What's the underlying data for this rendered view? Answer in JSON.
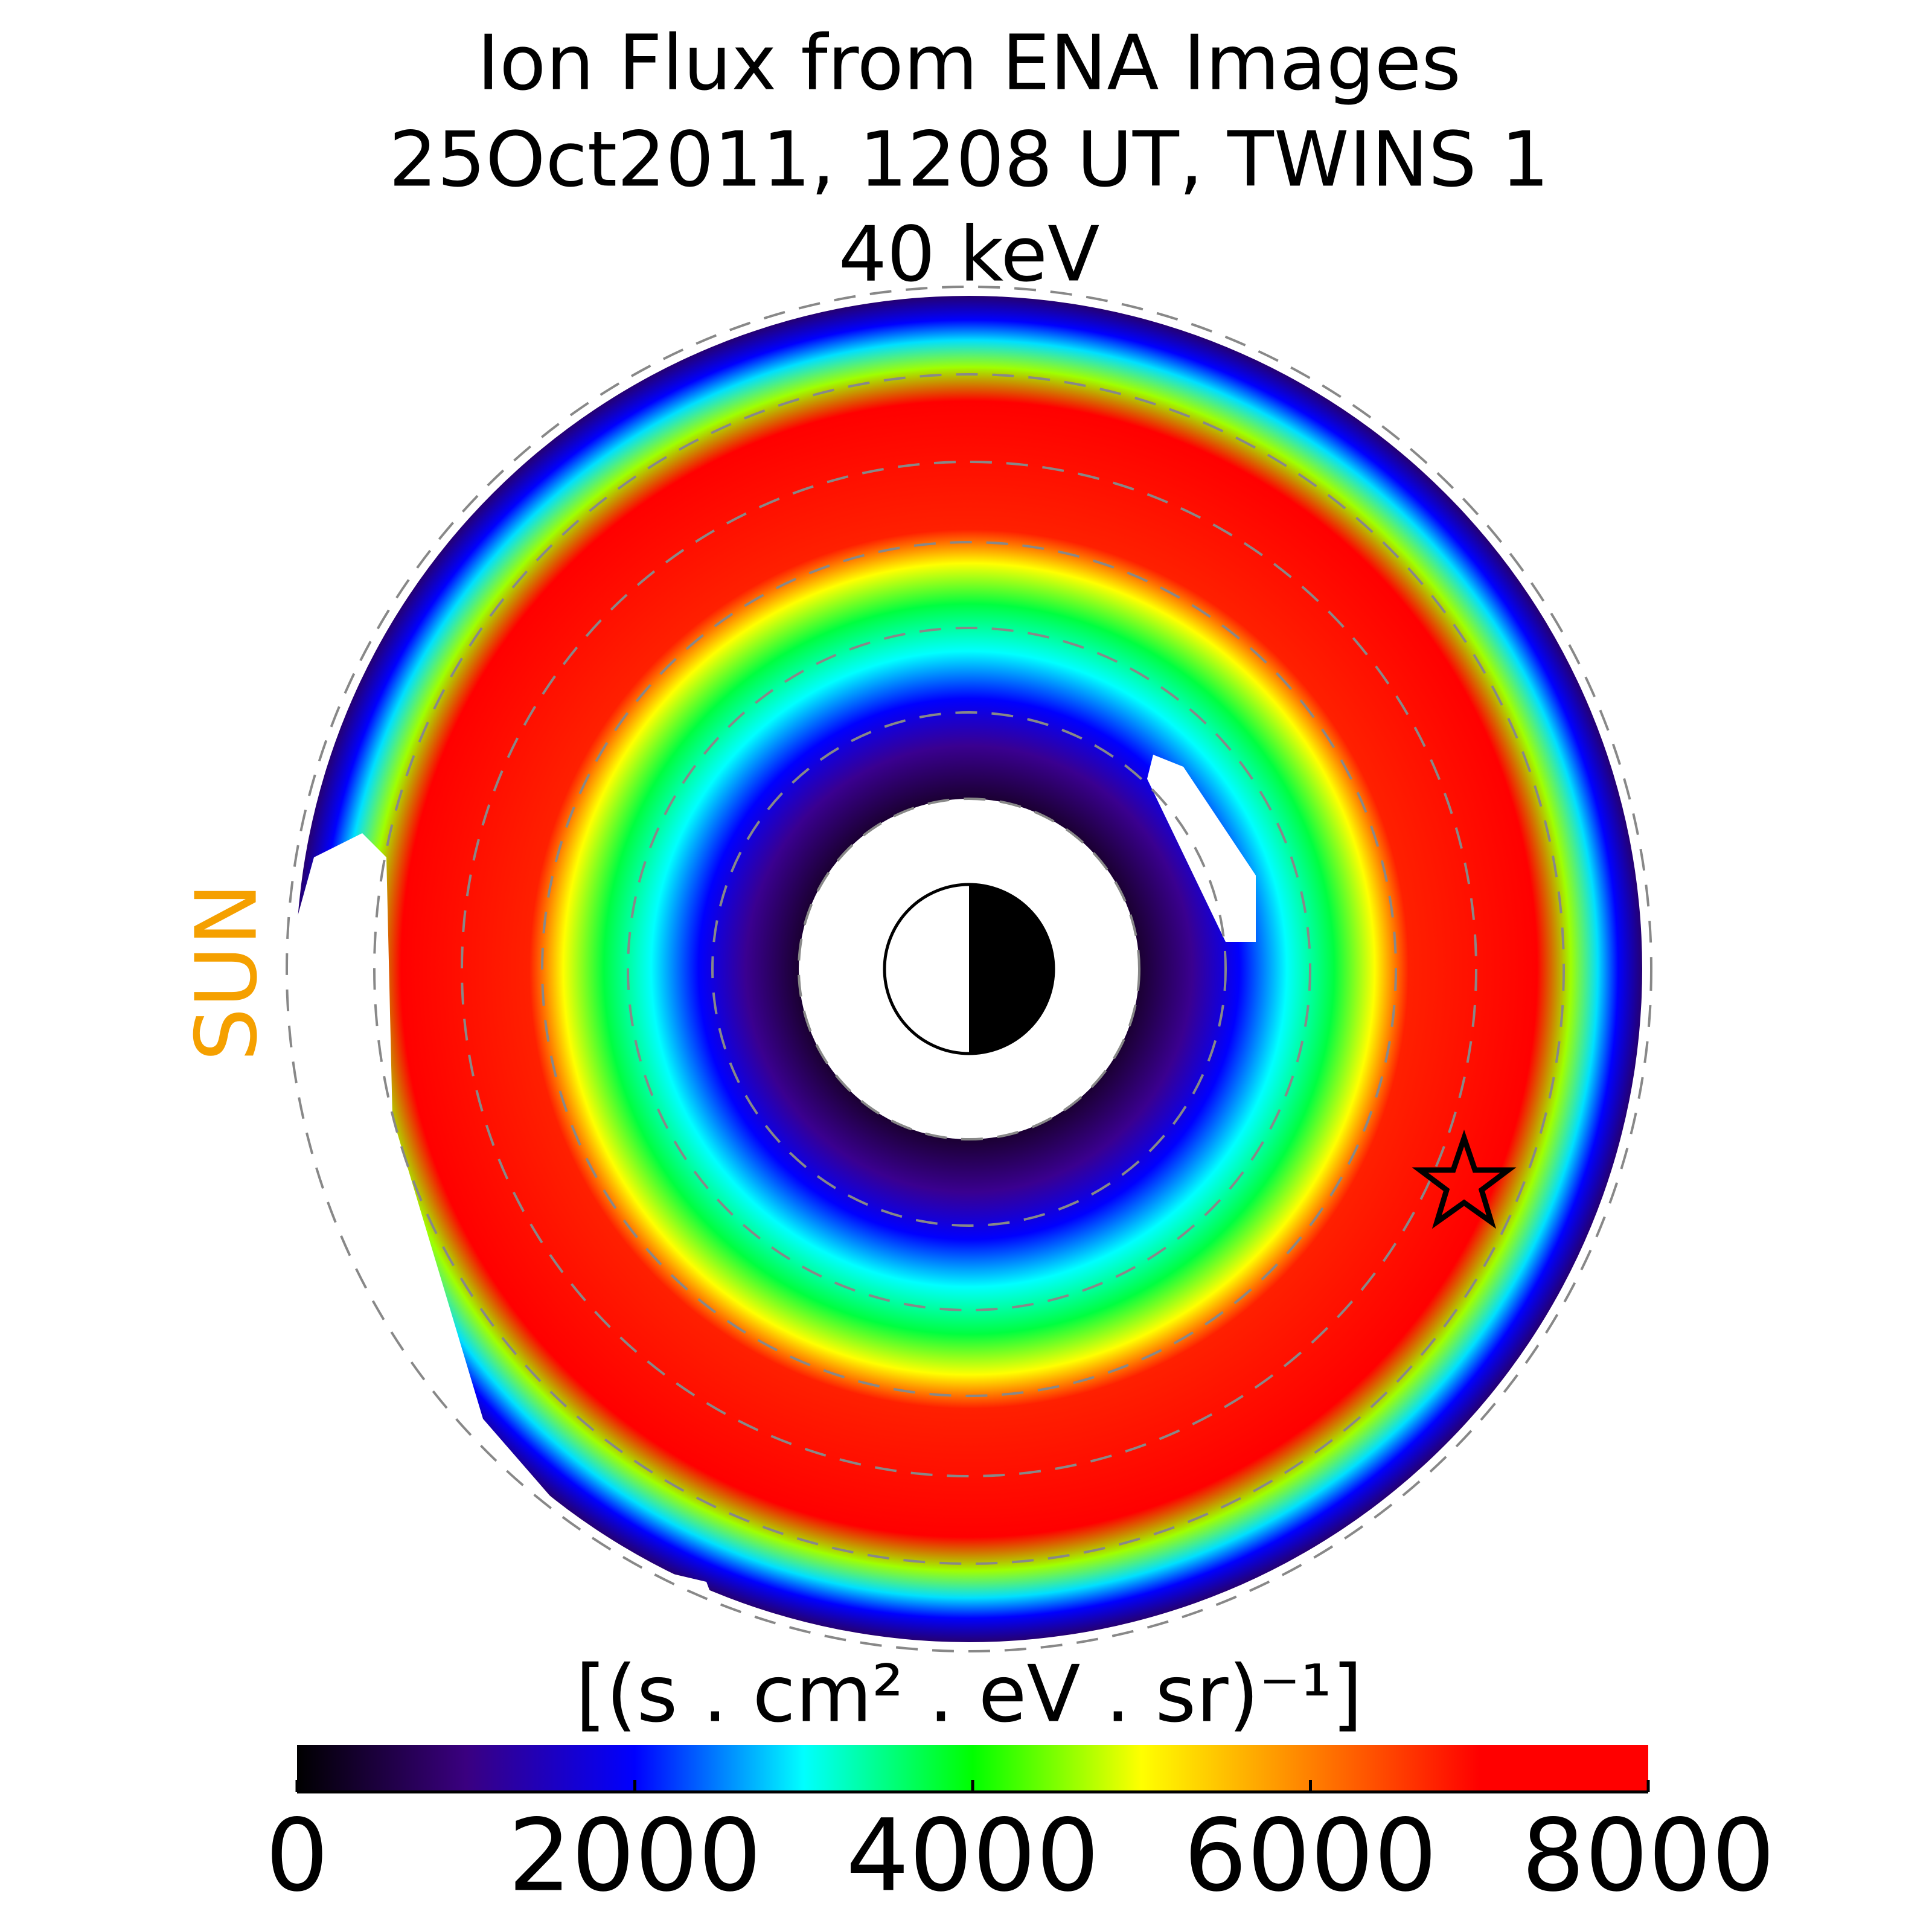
{
  "chart_data": {
    "type": "polar-image",
    "title": [
      "Ion Flux from  ENA Images",
      "25Oct2011, 1208 UT,  TWINS 1",
      "40 keV"
    ],
    "sun_label": "SUN",
    "colorbar": {
      "label": "[(s . cm² . eV . sr)⁻¹]",
      "clim": [
        0,
        8000
      ],
      "ticks": [
        0,
        2000,
        4000,
        6000,
        8000
      ],
      "colors": [
        "#000000",
        "#3a0080",
        "#0000ff",
        "#00ffff",
        "#00ff00",
        "#ffff00",
        "#ff8000",
        "#ff0000",
        "#ff0000"
      ]
    }
  }
}
